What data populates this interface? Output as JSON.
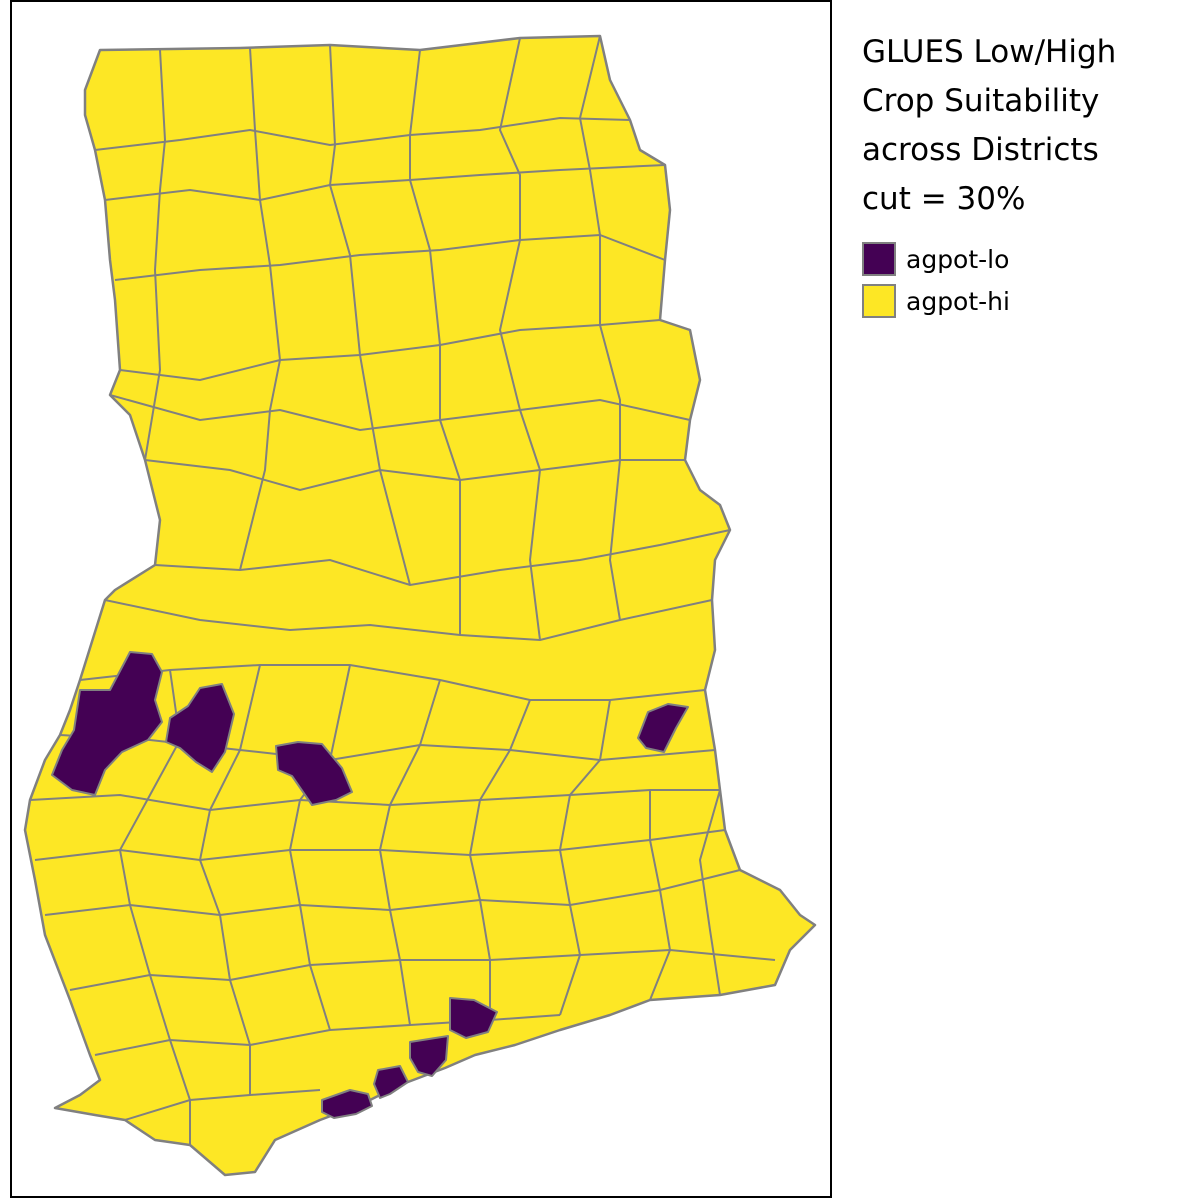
{
  "legend": {
    "title_lines": [
      "GLUES Low/High",
      "Crop Suitability",
      "across Districts",
      "cut = 30%"
    ],
    "items": [
      {
        "label": "agpot-lo",
        "color": "#440154"
      },
      {
        "label": "agpot-hi",
        "color": "#FDE725"
      }
    ]
  },
  "map": {
    "country": "Ghana",
    "border_color": "#808080",
    "low_suitability_color": "#440154",
    "high_suitability_color": "#FDE725"
  }
}
